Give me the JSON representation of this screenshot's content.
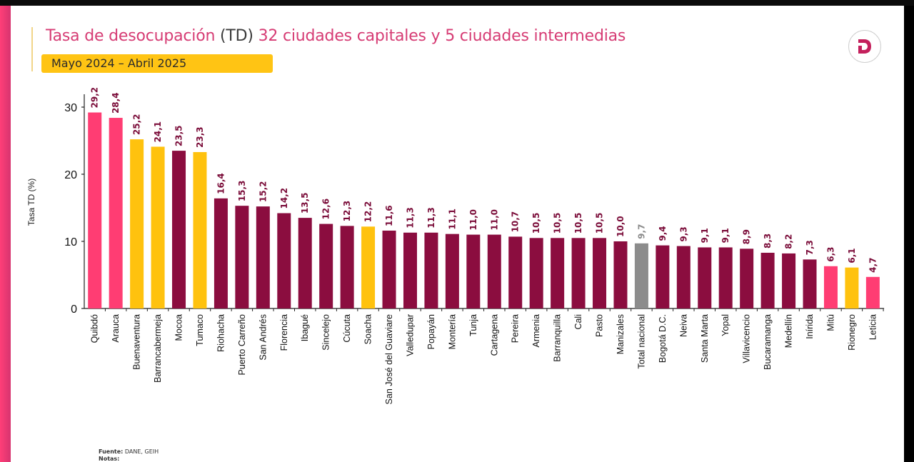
{
  "header": {
    "title_part1": "Tasa de desocupación ",
    "title_part2": "(TD)",
    "title_part3": " 32 ciudades capitales y 5 ciudades intermedias",
    "period": "Mayo 2024 – Abril 2025",
    "logo_letter": "D"
  },
  "footer": {
    "source_label": "Fuente:",
    "source_value": " DANE, GEIH",
    "notes_label": "Notas:"
  },
  "colors": {
    "capital": "#8b0d3f",
    "highlight_pink": "#ff3d73",
    "intermediate_yellow": "#ffc20e",
    "national_gray": "#8c8c8c",
    "title_pink": "#d63c74",
    "value_label": "#7a0b38",
    "national_label": "#8c8c8c"
  },
  "chart_data": {
    "type": "bar",
    "title": "Tasa de desocupación (TD) 32 ciudades capitales y 5 ciudades intermedias",
    "subtitle": "Mayo 2024 – Abril 2025",
    "xlabel": "",
    "ylabel": "Tasa TD (%)",
    "ylim": [
      0,
      30
    ],
    "yticks": [
      0,
      10,
      20,
      30
    ],
    "grid": false,
    "legend": "none",
    "categories": [
      "Quibdó",
      "Arauca",
      "Buenaventura",
      "Barrancabermeja",
      "Mocoa",
      "Tumaco",
      "Riohacha",
      "Puerto Carreño",
      "San Andrés",
      "Florencia",
      "Ibagué",
      "Sincelejo",
      "Cúcuta",
      "Soacha",
      "San José del Guaviare",
      "Valledupar",
      "Popayán",
      "Montería",
      "Tunja",
      "Cartagena",
      "Pereira",
      "Armenia",
      "Barranquilla",
      "Cali",
      "Pasto",
      "Manizales",
      "Total nacional",
      "Bogotá D.C.",
      "Neiva",
      "Santa Marta",
      "Yopal",
      "Villavicencio",
      "Bucaramanga",
      "Medellín",
      "Inírida",
      "Mitú",
      "Rionegro",
      "Leticia"
    ],
    "values": [
      29.2,
      28.4,
      25.2,
      24.1,
      23.5,
      23.3,
      16.4,
      15.3,
      15.2,
      14.2,
      13.5,
      12.6,
      12.3,
      12.2,
      11.6,
      11.3,
      11.3,
      11.1,
      11.0,
      11.0,
      10.7,
      10.5,
      10.5,
      10.5,
      10.5,
      10.0,
      9.7,
      9.4,
      9.3,
      9.1,
      9.1,
      8.9,
      8.3,
      8.2,
      7.3,
      6.3,
      6.1,
      4.7
    ],
    "value_labels": [
      "29,2",
      "28,4",
      "25,2",
      "24,1",
      "23,5",
      "23,3",
      "16,4",
      "15,3",
      "15,2",
      "14,2",
      "13,5",
      "12,6",
      "12,3",
      "12,2",
      "11,6",
      "11,3",
      "11,3",
      "11,1",
      "11,0",
      "11,0",
      "10,7",
      "10,5",
      "10,5",
      "10,5",
      "10,5",
      "10,0",
      "9,7",
      "9,4",
      "9,3",
      "9,1",
      "9,1",
      "8,9",
      "8,3",
      "8,2",
      "7,3",
      "6,3",
      "6,1",
      "4,7"
    ],
    "bar_colors": [
      "pink",
      "pink",
      "yellow",
      "yellow",
      "capital",
      "yellow",
      "capital",
      "capital",
      "capital",
      "capital",
      "capital",
      "capital",
      "capital",
      "yellow",
      "capital",
      "capital",
      "capital",
      "capital",
      "capital",
      "capital",
      "capital",
      "capital",
      "capital",
      "capital",
      "capital",
      "capital",
      "gray",
      "capital",
      "capital",
      "capital",
      "capital",
      "capital",
      "capital",
      "capital",
      "capital",
      "pink",
      "yellow",
      "pink"
    ]
  }
}
